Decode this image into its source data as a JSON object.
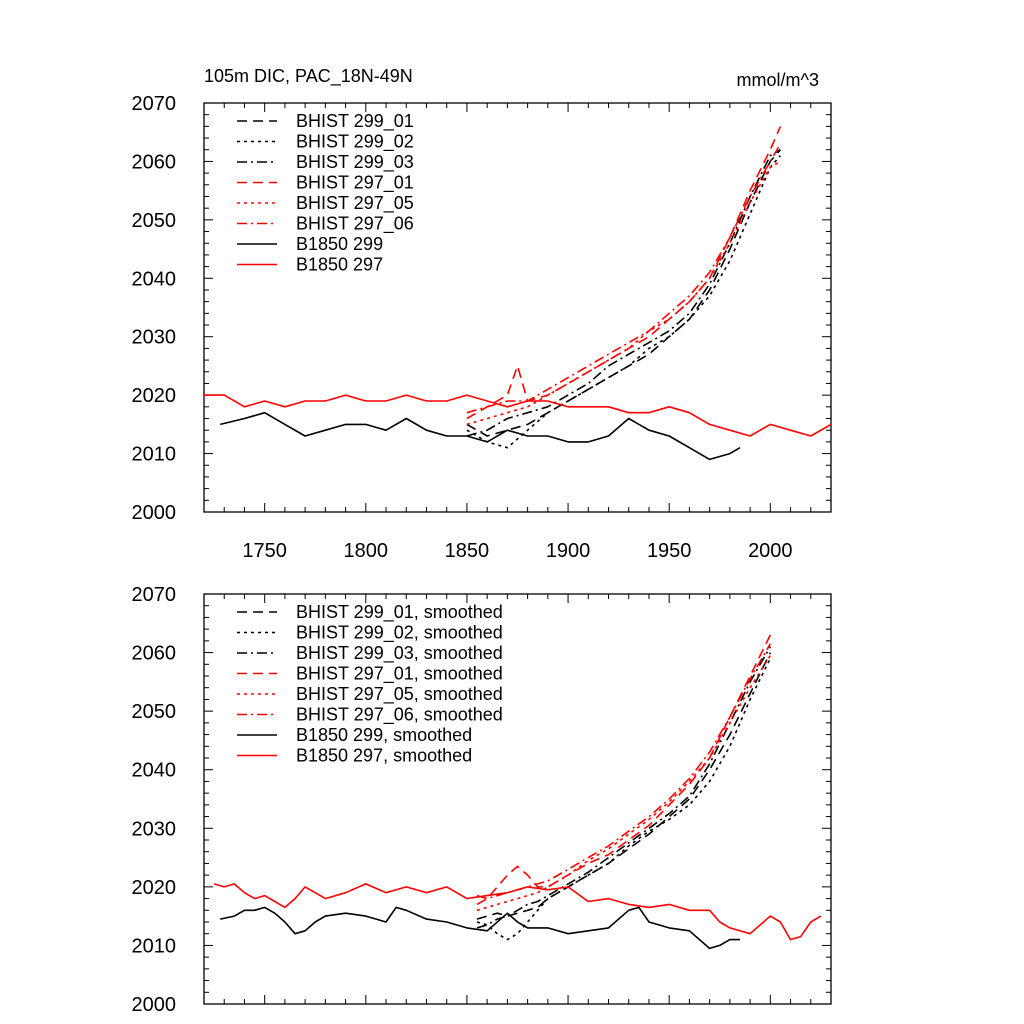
{
  "chart_data": [
    {
      "type": "line",
      "title": "105m DIC, PAC_18N-49N",
      "units": "mmol/m^3",
      "xlim": [
        1720,
        2030
      ],
      "ylim": [
        2000,
        2070
      ],
      "xticks": [
        "1750",
        "1800",
        "1850",
        "1900",
        "1950",
        "2000"
      ],
      "yticks": [
        "2000",
        "2010",
        "2020",
        "2030",
        "2040",
        "2050",
        "2060",
        "2070"
      ],
      "legend_position": "top-left",
      "series": [
        {
          "name": "BHIST 299_01",
          "color": "#000000",
          "dash": "dash",
          "x": [
            1850,
            1860,
            1870,
            1880,
            1890,
            1900,
            1910,
            1920,
            1930,
            1940,
            1950,
            1960,
            1970,
            1980,
            1990,
            2000,
            2005
          ],
          "y": [
            2015,
            2013,
            2014,
            2015,
            2017,
            2019,
            2021,
            2023,
            2025,
            2027,
            2030,
            2033,
            2038,
            2045,
            2053,
            2060,
            2062
          ]
        },
        {
          "name": "BHIST 299_02",
          "color": "#000000",
          "dash": "dot",
          "x": [
            1850,
            1860,
            1870,
            1880,
            1890,
            1900,
            1910,
            1920,
            1930,
            1940,
            1950,
            1960,
            1970,
            1980,
            1990,
            2000,
            2005
          ],
          "y": [
            2014,
            2012,
            2011,
            2014,
            2017,
            2019,
            2021,
            2023,
            2025,
            2028,
            2030,
            2033,
            2037,
            2043,
            2051,
            2059,
            2061
          ]
        },
        {
          "name": "BHIST 299_03",
          "color": "#000000",
          "dash": "dashdot",
          "x": [
            1850,
            1860,
            1870,
            1880,
            1890,
            1900,
            1910,
            1920,
            1930,
            1940,
            1950,
            1960,
            1970,
            1980,
            1990,
            2000,
            2005
          ],
          "y": [
            2013,
            2014,
            2016,
            2017,
            2018,
            2020,
            2022,
            2025,
            2027,
            2029,
            2031,
            2034,
            2039,
            2046,
            2054,
            2061,
            2062
          ]
        },
        {
          "name": "BHIST 297_01",
          "color": "#ff0000",
          "dash": "dash",
          "x": [
            1850,
            1860,
            1870,
            1875,
            1880,
            1890,
            1900,
            1910,
            1920,
            1930,
            1940,
            1950,
            1960,
            1970,
            1980,
            1990,
            2000,
            2005
          ],
          "y": [
            2016,
            2018,
            2020,
            2025,
            2019,
            2020,
            2022,
            2024,
            2026,
            2028,
            2030,
            2033,
            2036,
            2040,
            2047,
            2055,
            2062,
            2066
          ]
        },
        {
          "name": "BHIST 297_05",
          "color": "#ff0000",
          "dash": "dot",
          "x": [
            1850,
            1860,
            1870,
            1880,
            1890,
            1900,
            1910,
            1920,
            1930,
            1940,
            1950,
            1960,
            1970,
            1980,
            1990,
            2000,
            2005
          ],
          "y": [
            2015,
            2016,
            2017,
            2018,
            2020,
            2022,
            2024,
            2026,
            2028,
            2031,
            2033,
            2036,
            2040,
            2046,
            2053,
            2059,
            2060
          ]
        },
        {
          "name": "BHIST 297_06",
          "color": "#ff0000",
          "dash": "dashdot",
          "x": [
            1850,
            1860,
            1870,
            1880,
            1890,
            1900,
            1910,
            1920,
            1930,
            1940,
            1950,
            1960,
            1970,
            1980,
            1990,
            2000,
            2005
          ],
          "y": [
            2017,
            2018,
            2019,
            2019,
            2021,
            2023,
            2025,
            2027,
            2029,
            2031,
            2034,
            2037,
            2041,
            2047,
            2054,
            2060,
            2063
          ]
        },
        {
          "name": "B1850 299",
          "color": "#000000",
          "dash": "solid",
          "x": [
            1728,
            1740,
            1750,
            1760,
            1770,
            1780,
            1790,
            1800,
            1810,
            1820,
            1830,
            1840,
            1850,
            1860,
            1870,
            1880,
            1890,
            1900,
            1910,
            1920,
            1930,
            1940,
            1950,
            1960,
            1970,
            1980,
            1985
          ],
          "y": [
            2015,
            2016,
            2017,
            2015,
            2013,
            2014,
            2015,
            2015,
            2014,
            2016,
            2014,
            2013,
            2013,
            2012,
            2014,
            2013,
            2013,
            2012,
            2012,
            2013,
            2016,
            2014,
            2013,
            2011,
            2009,
            2010,
            2011
          ]
        },
        {
          "name": "B1850 297",
          "color": "#ff0000",
          "dash": "solid",
          "x": [
            1720,
            1730,
            1740,
            1750,
            1760,
            1770,
            1780,
            1790,
            1800,
            1810,
            1820,
            1830,
            1840,
            1850,
            1860,
            1870,
            1880,
            1890,
            1900,
            1910,
            1920,
            1930,
            1940,
            1950,
            1960,
            1970,
            1980,
            1990,
            2000,
            2010,
            2020,
            2030
          ],
          "y": [
            2020,
            2020,
            2018,
            2019,
            2018,
            2019,
            2019,
            2020,
            2019,
            2019,
            2020,
            2019,
            2019,
            2020,
            2019,
            2018,
            2019,
            2019,
            2018,
            2018,
            2018,
            2017,
            2017,
            2018,
            2017,
            2015,
            2014,
            2013,
            2015,
            2014,
            2013,
            2015
          ]
        }
      ]
    },
    {
      "type": "line",
      "title": "",
      "xlim": [
        1720,
        2030
      ],
      "ylim": [
        2000,
        2070
      ],
      "yticks": [
        "2000",
        "2010",
        "2020",
        "2030",
        "2040",
        "2050",
        "2060",
        "2070"
      ],
      "legend_position": "top-left",
      "series": [
        {
          "name": "BHIST 299_01, smoothed",
          "color": "#000000",
          "dash": "dash",
          "x": [
            1855,
            1860,
            1865,
            1870,
            1875,
            1880,
            1885,
            1890,
            1900,
            1910,
            1920,
            1930,
            1940,
            1950,
            1960,
            1970,
            1980,
            1990,
            2000
          ],
          "y": [
            2014.5,
            2015,
            2015.5,
            2015,
            2015.5,
            2016,
            2016.5,
            2018,
            2020,
            2022,
            2024,
            2026.5,
            2029,
            2032,
            2035,
            2040,
            2046,
            2053,
            2060
          ]
        },
        {
          "name": "BHIST 299_02, smoothed",
          "color": "#000000",
          "dash": "dot",
          "x": [
            1855,
            1860,
            1865,
            1870,
            1875,
            1880,
            1885,
            1890,
            1900,
            1910,
            1920,
            1930,
            1940,
            1950,
            1960,
            1970,
            1980,
            1990,
            2000
          ],
          "y": [
            2014,
            2013.5,
            2012,
            2011,
            2012,
            2014,
            2016,
            2018,
            2020,
            2022,
            2024,
            2027,
            2029.5,
            2031.5,
            2034,
            2038,
            2044,
            2052,
            2059
          ]
        },
        {
          "name": "BHIST 299_03, smoothed",
          "color": "#000000",
          "dash": "dashdot",
          "x": [
            1855,
            1860,
            1865,
            1870,
            1875,
            1880,
            1885,
            1890,
            1900,
            1910,
            1920,
            1930,
            1940,
            1950,
            1960,
            1970,
            1980,
            1990,
            2000
          ],
          "y": [
            2013,
            2013.5,
            2014.5,
            2015,
            2016,
            2017,
            2017.5,
            2018.5,
            2020.5,
            2022.5,
            2025,
            2027.5,
            2030,
            2032.5,
            2035.5,
            2041,
            2048,
            2055,
            2061
          ]
        },
        {
          "name": "BHIST 297_01, smoothed",
          "color": "#ff0000",
          "dash": "dash",
          "x": [
            1855,
            1860,
            1865,
            1870,
            1875,
            1880,
            1885,
            1890,
            1900,
            1910,
            1920,
            1930,
            1940,
            1950,
            1960,
            1970,
            1980,
            1990,
            2000
          ],
          "y": [
            2017,
            2018,
            2020,
            2022,
            2023.5,
            2022,
            2020,
            2020,
            2022,
            2024,
            2025.5,
            2028,
            2030.5,
            2034,
            2037.5,
            2042,
            2049,
            2056,
            2063
          ]
        },
        {
          "name": "BHIST 297_05, smoothed",
          "color": "#ff0000",
          "dash": "dot",
          "x": [
            1855,
            1860,
            1865,
            1870,
            1875,
            1880,
            1885,
            1890,
            1900,
            1910,
            1920,
            1930,
            1940,
            1950,
            1960,
            1970,
            1980,
            1990,
            2000
          ],
          "y": [
            2016,
            2016.5,
            2017,
            2017.5,
            2018,
            2018.5,
            2019,
            2020,
            2022,
            2024.5,
            2026.5,
            2029,
            2031.5,
            2034.5,
            2038,
            2042,
            2048,
            2054,
            2059.5
          ]
        },
        {
          "name": "BHIST 297_06, smoothed",
          "color": "#ff0000",
          "dash": "dashdot",
          "x": [
            1855,
            1860,
            1865,
            1870,
            1875,
            1880,
            1885,
            1890,
            1900,
            1910,
            1920,
            1930,
            1940,
            1950,
            1960,
            1970,
            1980,
            1990,
            2000
          ],
          "y": [
            2018.5,
            2018,
            2018.5,
            2019,
            2019.5,
            2020,
            2020.5,
            2021,
            2023,
            2025,
            2027,
            2029.5,
            2032,
            2035,
            2038.5,
            2043,
            2049,
            2055.5,
            2061.5
          ]
        },
        {
          "name": "B1850 299, smoothed",
          "color": "#000000",
          "dash": "solid",
          "x": [
            1728,
            1735,
            1740,
            1745,
            1750,
            1755,
            1760,
            1765,
            1770,
            1775,
            1780,
            1790,
            1800,
            1810,
            1815,
            1820,
            1830,
            1840,
            1850,
            1860,
            1870,
            1875,
            1880,
            1890,
            1900,
            1910,
            1920,
            1930,
            1935,
            1940,
            1950,
            1960,
            1965,
            1970,
            1975,
            1980,
            1985
          ],
          "y": [
            2014.5,
            2015,
            2016,
            2016,
            2016.5,
            2015.5,
            2014,
            2012,
            2012.5,
            2014,
            2015,
            2015.5,
            2015,
            2014,
            2016.5,
            2016,
            2014.5,
            2014,
            2013,
            2012.5,
            2015.5,
            2014,
            2013,
            2013,
            2012,
            2012.5,
            2013,
            2016,
            2016.5,
            2014,
            2013,
            2012.5,
            2011,
            2009.5,
            2010,
            2011,
            2011
          ]
        },
        {
          "name": "B1850 297, smoothed",
          "color": "#ff0000",
          "dash": "solid",
          "x": [
            1725,
            1730,
            1735,
            1740,
            1745,
            1750,
            1755,
            1760,
            1765,
            1770,
            1780,
            1790,
            1800,
            1810,
            1820,
            1830,
            1840,
            1850,
            1860,
            1870,
            1880,
            1890,
            1900,
            1910,
            1920,
            1930,
            1940,
            1950,
            1960,
            1970,
            1975,
            1980,
            1990,
            2000,
            2005,
            2010,
            2015,
            2020,
            2025
          ],
          "y": [
            2020.5,
            2020,
            2020.5,
            2019,
            2018,
            2018.5,
            2017.5,
            2016.5,
            2018,
            2020,
            2018,
            2019,
            2020.5,
            2019,
            2020,
            2019,
            2020,
            2018,
            2018.5,
            2019,
            2020,
            2019.5,
            2020,
            2017.5,
            2018,
            2017,
            2016.5,
            2017,
            2016,
            2016,
            2014,
            2013,
            2012,
            2015,
            2014,
            2011,
            2011.5,
            2014,
            2015
          ]
        }
      ]
    }
  ]
}
